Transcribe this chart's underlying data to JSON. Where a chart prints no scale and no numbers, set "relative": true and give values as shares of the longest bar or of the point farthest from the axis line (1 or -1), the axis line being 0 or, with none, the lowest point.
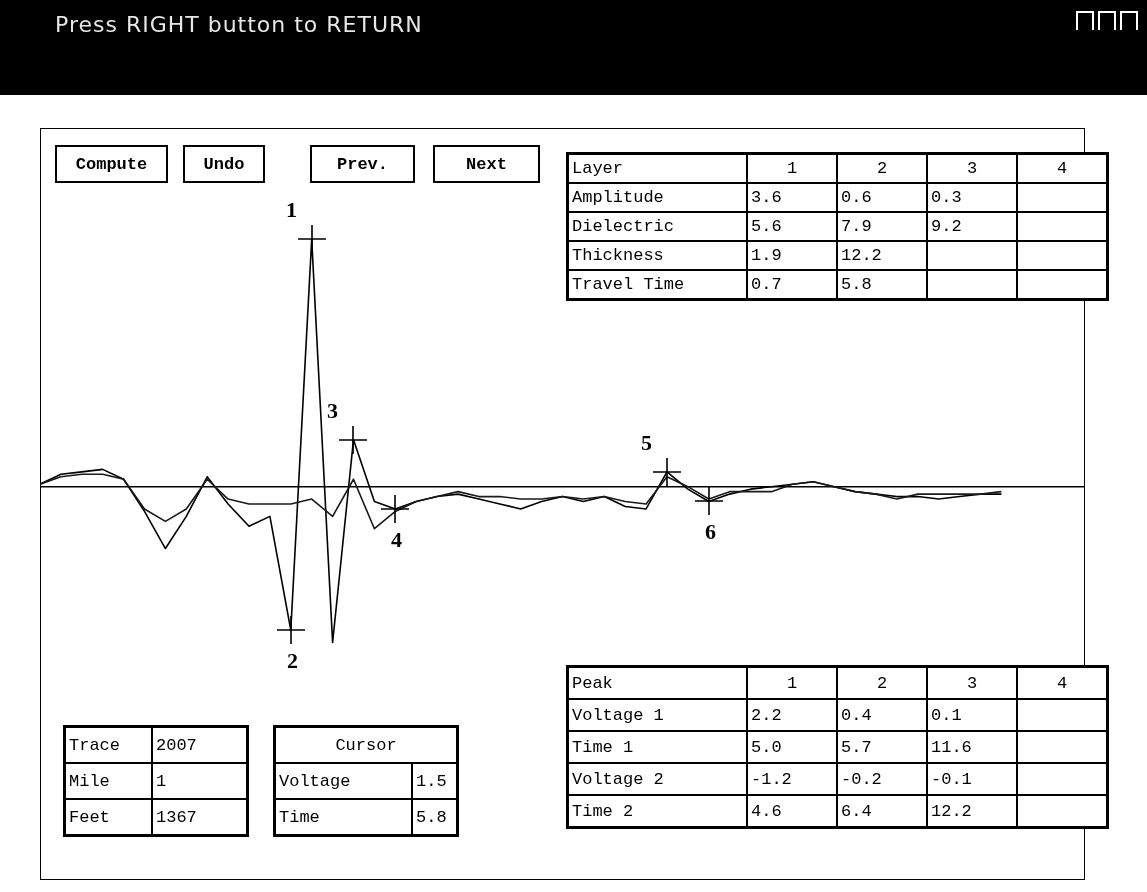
{
  "chart_data": {
    "type": "line",
    "title": "Press RIGHT button to RETURN",
    "relative": true,
    "categories": [
      null,
      null,
      null,
      null,
      null,
      null,
      null,
      null,
      null,
      null,
      null,
      null,
      null,
      null,
      null,
      null,
      null,
      null,
      null,
      null,
      null,
      null,
      null,
      null,
      null,
      null,
      null,
      null,
      null,
      null,
      null,
      null,
      null,
      null,
      null,
      null,
      null,
      null,
      null,
      null,
      null,
      null,
      null,
      null,
      null,
      null,
      null,
      null,
      null,
      null,
      null
    ],
    "series": [
      {
        "color": "#000000",
        "values": [
          0.01,
          0.05,
          0.06,
          0.07,
          0.03,
          -0.1,
          -0.25,
          -0.12,
          0.04,
          -0.07,
          -0.16,
          -0.12,
          -0.58,
          1.0,
          -0.63,
          0.19,
          -0.06,
          -0.09,
          -0.06,
          -0.04,
          -0.03,
          -0.05,
          -0.07,
          -0.09,
          -0.06,
          -0.04,
          -0.06,
          -0.04,
          -0.08,
          -0.09,
          0.06,
          -0.01,
          -0.06,
          -0.03,
          -0.01,
          0.0,
          0.01,
          0.02,
          0.0,
          -0.02,
          -0.03,
          -0.04,
          -0.04,
          -0.05,
          -0.04,
          -0.03,
          -0.03,
          null,
          null,
          null,
          null
        ]
      },
      {
        "color": "#1a1a1a",
        "values": [
          0.01,
          0.04,
          0.05,
          0.05,
          0.03,
          -0.09,
          -0.14,
          -0.09,
          0.03,
          -0.05,
          -0.07,
          -0.07,
          -0.07,
          -0.05,
          -0.12,
          0.03,
          -0.17,
          -0.1,
          -0.06,
          -0.04,
          -0.02,
          -0.04,
          -0.04,
          -0.05,
          -0.05,
          -0.04,
          -0.05,
          -0.04,
          -0.06,
          -0.07,
          0.04,
          0.0,
          -0.05,
          -0.02,
          -0.02,
          -0.02,
          0.01,
          0.02,
          0.0,
          -0.02,
          -0.03,
          -0.05,
          -0.03,
          -0.03,
          -0.03,
          -0.03,
          -0.02,
          null,
          null,
          null,
          null
        ]
      }
    ],
    "marker": "none",
    "annotations": [
      "2",
      "1",
      "3",
      "4",
      "5",
      "6",
      "Compute",
      "Undo",
      "Prev.",
      "Next",
      "Layer",
      "1",
      "2",
      "3",
      "4",
      "Amplitude",
      "3.6",
      "0.6",
      "0.3",
      "Dielectric",
      "5.6",
      "7.9",
      "9.2",
      "Thickness",
      "1.9",
      "12.2",
      "Travel Time",
      "0.7",
      "5.8",
      "Peak",
      "1",
      "2",
      "3",
      "4",
      "Voltage 1",
      "2.2",
      "0.4",
      "0.1",
      "Time 1",
      "5.0",
      "5.7",
      "11.6",
      "Voltage 2",
      "-1.2",
      "-0.2",
      "-0.1",
      "Time 2",
      "4.6",
      "6.4",
      "12.2",
      "Trace",
      "2007",
      "Mile",
      "1",
      "Feet",
      "1367",
      "Cursor",
      "Voltage",
      "1.5",
      "Time",
      "5.8"
    ]
  }
}
